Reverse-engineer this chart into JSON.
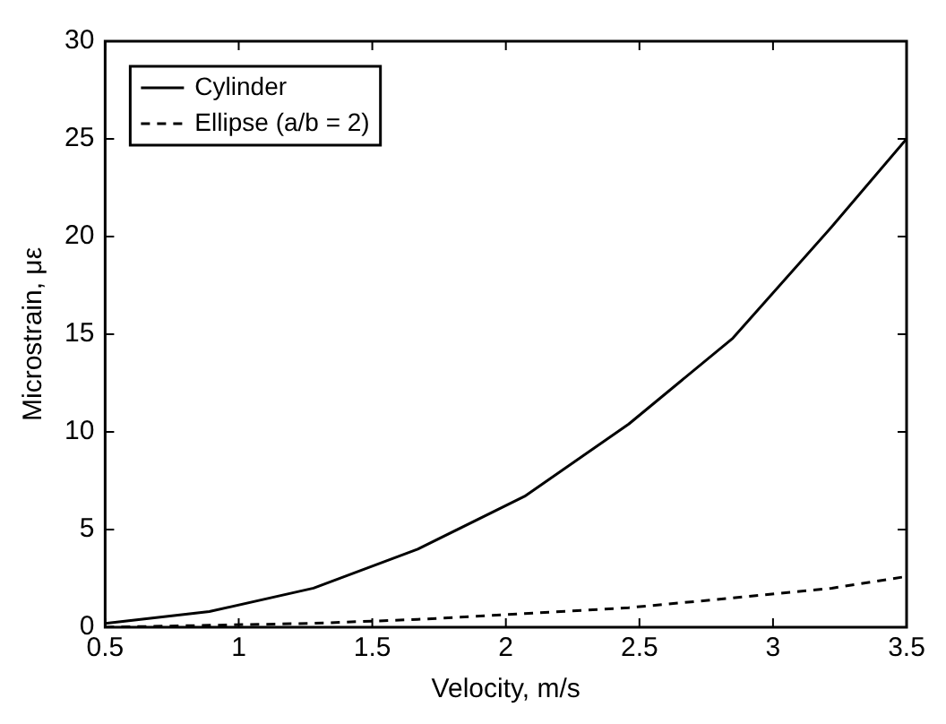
{
  "chart_data": {
    "type": "line",
    "xlabel": "Velocity, m/s",
    "ylabel": "Microstrain, με",
    "x": [
      0.5,
      0.89,
      1.28,
      1.67,
      2.07,
      2.46,
      2.85,
      3.22,
      3.5
    ],
    "series": [
      {
        "name": "Cylinder",
        "color": "#000000",
        "line_style": "solid",
        "values": [
          0.2,
          0.8,
          2.0,
          4.0,
          6.7,
          10.4,
          14.8,
          20.5,
          25
        ]
      },
      {
        "name": "Ellipse (a/b = 2)",
        "color": "#000000",
        "line_style": "dashed",
        "values": [
          0,
          0.1,
          0.2,
          0.4,
          0.7,
          1.0,
          1.5,
          2.0,
          2.6
        ]
      }
    ],
    "xlim": [
      0.5,
      3.5
    ],
    "xticks": [
      0.5,
      1,
      1.5,
      2,
      2.5,
      3,
      3.5
    ],
    "ylim": [
      0,
      30
    ],
    "yticks": [
      0,
      5,
      10,
      15,
      20,
      25,
      30
    ],
    "grid": false,
    "legend": "top left",
    "marker": "none"
  }
}
